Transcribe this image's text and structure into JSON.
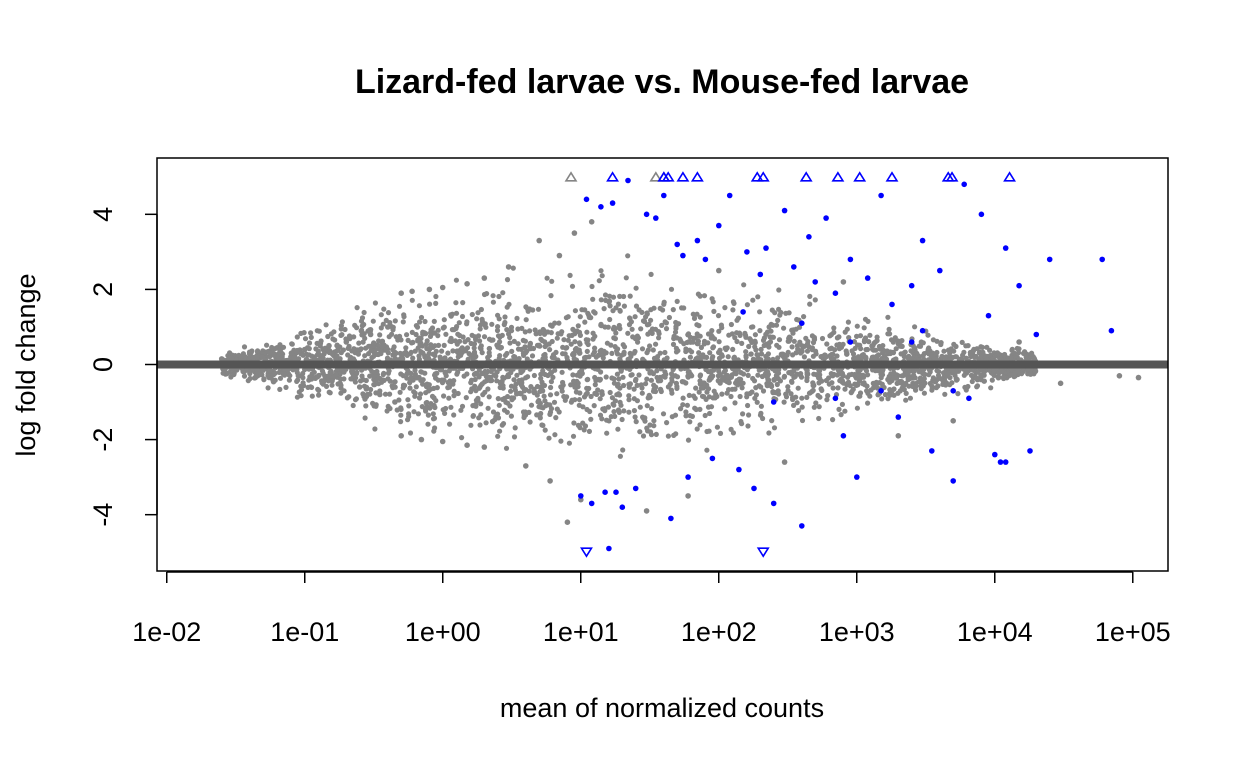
{
  "chart_data": {
    "type": "scatter",
    "title": "Lizard-fed larvae vs. Mouse-fed larvae",
    "xlabel": "mean of normalized counts",
    "ylabel": "log fold change",
    "x_scale": "log10",
    "xlim": [
      0.0085,
      180000
    ],
    "ylim": [
      -5.5,
      5.5
    ],
    "x_ticks": [
      {
        "value": 0.01,
        "label": "1e-02"
      },
      {
        "value": 0.1,
        "label": "1e-01"
      },
      {
        "value": 1,
        "label": "1e+00"
      },
      {
        "value": 10,
        "label": "1e+01"
      },
      {
        "value": 100,
        "label": "1e+02"
      },
      {
        "value": 1000,
        "label": "1e+03"
      },
      {
        "value": 10000,
        "label": "1e+04"
      },
      {
        "value": 100000,
        "label": "1e+05"
      }
    ],
    "y_ticks": [
      {
        "value": -4,
        "label": "-4"
      },
      {
        "value": -2,
        "label": "-2"
      },
      {
        "value": 0,
        "label": "0"
      },
      {
        "value": 2,
        "label": "2"
      },
      {
        "value": 4,
        "label": "4"
      }
    ],
    "reference_line": {
      "y": 0,
      "color": "#555555"
    },
    "grid": false,
    "colors": {
      "not_significant": "#858585",
      "significant": "#0000ff",
      "reference_line": "#555555"
    },
    "series": [
      {
        "points": [
          [
            0.025,
            0.15
          ],
          [
            0.03,
            -0.1
          ],
          [
            0.035,
            0.1
          ],
          [
            0.04,
            -0.2
          ],
          [
            0.045,
            0.2
          ],
          [
            0.05,
            -0.15
          ],
          [
            0.06,
            0.25
          ],
          [
            0.07,
            -0.25
          ],
          [
            0.08,
            0.3
          ],
          [
            0.09,
            -0.3
          ],
          [
            0.1,
            0.4
          ],
          [
            0.12,
            -0.35
          ],
          [
            0.15,
            0.5
          ],
          [
            0.18,
            -0.5
          ],
          [
            0.2,
            0.6
          ],
          [
            0.25,
            -0.6
          ],
          [
            0.3,
            0.8
          ],
          [
            0.35,
            -0.8
          ],
          [
            0.4,
            1.0
          ],
          [
            0.45,
            -1.0
          ],
          [
            0.5,
            1.9
          ],
          [
            0.6,
            1.95
          ],
          [
            0.8,
            2.0
          ],
          [
            1.0,
            2.05
          ],
          [
            1.5,
            2.15
          ],
          [
            0.5,
            -1.9
          ],
          [
            0.7,
            -2.0
          ],
          [
            1.0,
            -2.05
          ],
          [
            1.5,
            -2.15
          ],
          [
            2.0,
            -2.2
          ],
          [
            2.0,
            2.3
          ],
          [
            3.0,
            2.6
          ],
          [
            4.0,
            -2.7
          ],
          [
            5.0,
            3.3
          ],
          [
            6.0,
            -3.1
          ],
          [
            7.0,
            2.9
          ],
          [
            8.0,
            -4.2
          ],
          [
            9.0,
            3.5
          ],
          [
            10.0,
            -3.6
          ],
          [
            12.0,
            3.8
          ],
          [
            8.5,
            5.0
          ],
          [
            35.0,
            5.0
          ],
          [
            40.0,
            5.0
          ],
          [
            30.0,
            -3.9
          ],
          [
            60.0,
            -3.5
          ],
          [
            100.0,
            2.5
          ],
          [
            300.0,
            -2.6
          ],
          [
            800.0,
            2.2
          ],
          [
            2000.0,
            -1.9
          ],
          [
            5000.0,
            -1.5
          ],
          [
            15000.0,
            0.6
          ],
          [
            30000.0,
            -0.5
          ],
          [
            80000.0,
            -0.3
          ],
          [
            110000.0,
            -0.35
          ]
        ]
      },
      {
        "points": [
          [
            10.0,
            -3.5
          ],
          [
            11.0,
            4.4
          ],
          [
            12.0,
            -3.7
          ],
          [
            14.0,
            4.2
          ],
          [
            15.0,
            -3.4
          ],
          [
            17.0,
            4.3
          ],
          [
            18.0,
            -3.4
          ],
          [
            20.0,
            -3.8
          ],
          [
            22.0,
            4.9
          ],
          [
            25.0,
            -3.3
          ],
          [
            30.0,
            4.0
          ],
          [
            35.0,
            3.9
          ],
          [
            40.0,
            4.5
          ],
          [
            45.0,
            -4.1
          ],
          [
            50.0,
            3.2
          ],
          [
            55.0,
            2.9
          ],
          [
            60.0,
            -3.0
          ],
          [
            70.0,
            3.3
          ],
          [
            80.0,
            2.8
          ],
          [
            90.0,
            -2.5
          ],
          [
            100.0,
            3.7
          ],
          [
            120.0,
            4.5
          ],
          [
            140.0,
            -2.8
          ],
          [
            160.0,
            3.0
          ],
          [
            180.0,
            -3.3
          ],
          [
            200.0,
            2.4
          ],
          [
            220.0,
            3.1
          ],
          [
            250.0,
            -3.7
          ],
          [
            300.0,
            4.1
          ],
          [
            350.0,
            2.6
          ],
          [
            400.0,
            -4.3
          ],
          [
            450.0,
            3.4
          ],
          [
            500.0,
            2.2
          ],
          [
            600.0,
            3.9
          ],
          [
            700.0,
            1.9
          ],
          [
            800.0,
            -1.9
          ],
          [
            900.0,
            2.8
          ],
          [
            1000.0,
            -3.0
          ],
          [
            1200.0,
            2.3
          ],
          [
            1500.0,
            4.5
          ],
          [
            1800.0,
            1.6
          ],
          [
            2000.0,
            -1.4
          ],
          [
            2500.0,
            2.1
          ],
          [
            3000.0,
            3.3
          ],
          [
            3500.0,
            -2.3
          ],
          [
            4000.0,
            2.5
          ],
          [
            5000.0,
            -3.1
          ],
          [
            6000.0,
            4.8
          ],
          [
            8000.0,
            4.0
          ],
          [
            10000.0,
            -2.4
          ],
          [
            12000.0,
            3.1
          ],
          [
            15000.0,
            2.1
          ],
          [
            20000.0,
            0.8
          ],
          [
            25000.0,
            2.8
          ],
          [
            60000.0,
            2.8
          ],
          [
            70000.0,
            0.9
          ],
          [
            18000.0,
            -2.3
          ],
          [
            11000.0,
            -2.6
          ],
          [
            12000.0,
            -2.6
          ],
          [
            9000.0,
            1.3
          ],
          [
            3000.0,
            0.9
          ],
          [
            5000.0,
            -0.7
          ],
          [
            6500.0,
            -0.9
          ],
          [
            700.0,
            -0.9
          ],
          [
            400.0,
            1.1
          ],
          [
            250.0,
            -1.0
          ],
          [
            150.0,
            1.4
          ],
          [
            1500.0,
            -0.7
          ],
          [
            900.0,
            0.6
          ],
          [
            2500.0,
            0.6
          ],
          [
            17.0,
            5.0
          ],
          [
            40.0,
            5.0
          ],
          [
            43.0,
            5.0
          ],
          [
            55.0,
            5.0
          ],
          [
            70.0,
            5.0
          ],
          [
            190.0,
            5.0
          ],
          [
            210.0,
            5.0
          ],
          [
            430.0,
            5.0
          ],
          [
            730.0,
            5.0
          ],
          [
            1050.0,
            5.0
          ],
          [
            1800.0,
            5.0
          ],
          [
            4600.0,
            5.0
          ],
          [
            4900.0,
            5.0
          ],
          [
            12800.0,
            5.0
          ],
          [
            11.0,
            -5.0
          ],
          [
            210.0,
            -5.0
          ],
          [
            16.0,
            -4.9
          ]
        ]
      }
    ]
  }
}
